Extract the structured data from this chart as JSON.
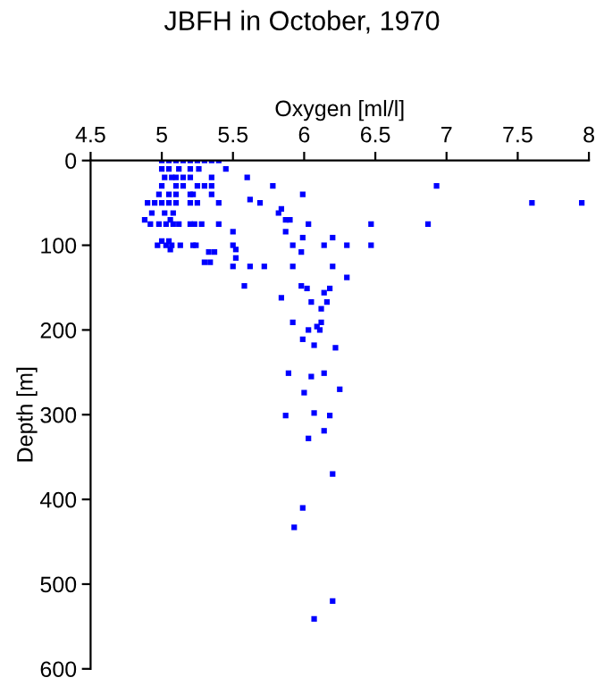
{
  "chart_data": {
    "type": "scatter",
    "title": "JBFH in October, 1970",
    "xlabel": "Oxygen [ml/l]",
    "ylabel": "Depth [m]",
    "xlim": [
      4.5,
      8
    ],
    "xticks": [
      4.5,
      5,
      5.5,
      6,
      6.5,
      7,
      7.5,
      8
    ],
    "ylim": [
      600,
      0
    ],
    "yticks": [
      0,
      100,
      200,
      300,
      400,
      500,
      600
    ],
    "grid": false,
    "marker": "square",
    "series": [
      {
        "color": "#0000ff",
        "x": [
          5.0,
          5.05,
          5.1,
          5.15,
          5.2,
          5.25,
          5.3,
          5.35,
          5.4,
          5.0,
          5.05,
          5.12,
          5.2,
          5.26,
          5.45,
          5.02,
          5.07,
          5.1,
          5.15,
          5.2,
          5.35,
          5.6,
          5.0,
          5.1,
          5.15,
          5.25,
          5.3,
          5.35,
          5.78,
          6.93,
          4.98,
          5.05,
          5.1,
          5.2,
          5.22,
          5.35,
          5.99,
          5.62,
          4.9,
          4.95,
          5.0,
          5.05,
          5.1,
          5.2,
          5.25,
          5.4,
          5.69,
          7.6,
          7.95,
          5.84,
          4.93,
          5.02,
          5.08,
          5.82,
          4.88,
          5.06,
          5.87,
          5.9,
          4.92,
          4.98,
          5.03,
          5.08,
          5.12,
          5.2,
          5.23,
          5.28,
          5.4,
          6.03,
          6.47,
          6.87,
          5.5,
          5.87,
          5.99,
          6.2,
          5.0,
          5.05,
          4.97,
          5.03,
          5.07,
          5.13,
          5.22,
          5.24,
          5.5,
          5.92,
          6.14,
          6.3,
          6.47,
          5.06,
          5.52,
          5.98,
          5.33,
          5.37,
          5.52,
          5.3,
          5.34,
          5.5,
          5.62,
          5.72,
          5.92,
          6.2,
          6.3,
          5.58,
          5.98,
          6.02,
          6.18,
          6.14,
          5.84,
          6.16,
          6.05,
          6.12,
          5.92,
          6.12,
          6.09,
          6.03,
          6.11,
          5.99,
          6.07,
          6.22,
          5.89,
          6.14,
          6.05,
          6.25,
          6.0,
          6.07,
          5.87,
          6.18,
          6.14,
          6.03,
          6.2,
          5.99,
          5.93,
          6.2,
          6.07
        ],
        "values": [
          0,
          0,
          0,
          0,
          0,
          0,
          0,
          0,
          0,
          10,
          10,
          10,
          10,
          10,
          10,
          20,
          20,
          20,
          20,
          20,
          20,
          20,
          30,
          30,
          30,
          30,
          30,
          30,
          30,
          30,
          40,
          40,
          40,
          40,
          40,
          40,
          40,
          46,
          50,
          50,
          50,
          50,
          50,
          50,
          50,
          50,
          50,
          50,
          50,
          57,
          62,
          62,
          62,
          62,
          70,
          70,
          70,
          70,
          75,
          75,
          75,
          75,
          75,
          75,
          75,
          75,
          75,
          75,
          75,
          75,
          84,
          84,
          91,
          91,
          95,
          95,
          100,
          100,
          100,
          100,
          100,
          100,
          100,
          100,
          100,
          100,
          100,
          105,
          105,
          108,
          108,
          108,
          115,
          120,
          120,
          125,
          125,
          125,
          125,
          125,
          138,
          148,
          148,
          151,
          151,
          156,
          162,
          167,
          167,
          175,
          191,
          191,
          196,
          200,
          200,
          211,
          218,
          221,
          251,
          251,
          255,
          270,
          274,
          298,
          301,
          301,
          319,
          328,
          370,
          410,
          433,
          520,
          541
        ]
      }
    ]
  }
}
